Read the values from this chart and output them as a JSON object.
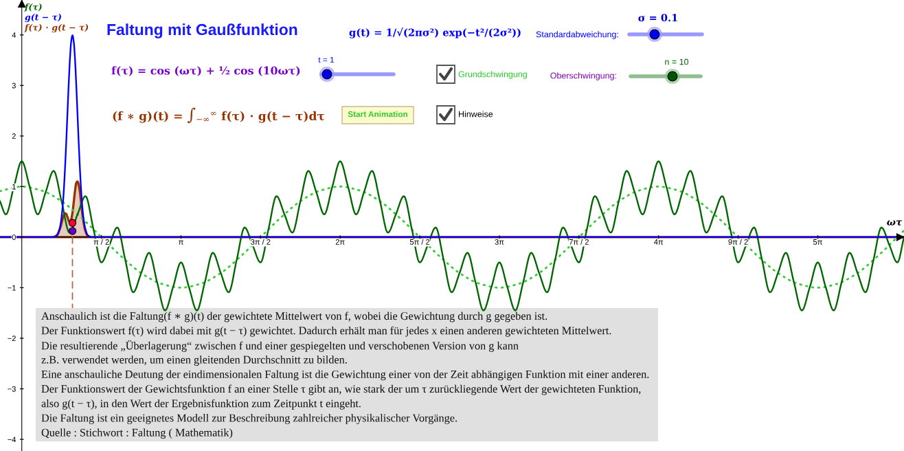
{
  "chart_data": {
    "type": "line",
    "title": "Faltung mit Gaußfunktion",
    "xlabel": "ωτ",
    "xlim": [
      -0.43,
      17.41
    ],
    "ylim": [
      -4.23,
      4.69
    ],
    "xticks": [
      {
        "value": 1.571,
        "label": "π / 2"
      },
      {
        "value": 3.142,
        "label": "π"
      },
      {
        "value": 4.712,
        "label": "3π / 2"
      },
      {
        "value": 6.283,
        "label": "2π"
      },
      {
        "value": 7.854,
        "label": "5π / 2"
      },
      {
        "value": 9.425,
        "label": "3π"
      },
      {
        "value": 10.996,
        "label": "7π / 2"
      },
      {
        "value": 12.566,
        "label": "4π"
      },
      {
        "value": 14.137,
        "label": "9π / 2"
      },
      {
        "value": 15.708,
        "label": "5π"
      }
    ],
    "yticks": [
      {
        "value": -4,
        "label": "−4"
      },
      {
        "value": -3,
        "label": "−3"
      },
      {
        "value": -2,
        "label": "−2"
      },
      {
        "value": -1,
        "label": "−1"
      },
      0,
      1,
      2,
      3,
      4
    ],
    "legend": "top left",
    "series": [
      {
        "name": "f(τ)",
        "color": "#006600",
        "x": [
          -0.43,
          -0.314,
          -0.157,
          0,
          0.157,
          0.314,
          0.471,
          0.628,
          0.785,
          0.942,
          1.1,
          1.257,
          1.414,
          1.571,
          1.728,
          1.885,
          2.042,
          2.199,
          2.356,
          2.513,
          2.67,
          2.827,
          2.985,
          3.142,
          3.299,
          3.456,
          3.613,
          3.77,
          3.927,
          4.084,
          4.241,
          4.398,
          4.555,
          4.712,
          4.869,
          5.027,
          5.184,
          5.341,
          5.498,
          5.655,
          5.812,
          5.969,
          6.126,
          6.283,
          6.44,
          6.597,
          6.754,
          6.912,
          7.069,
          7.226,
          7.383,
          7.54,
          7.697,
          7.854,
          8.011,
          8.168,
          8.325,
          8.482,
          8.639,
          8.796,
          8.954,
          9.111,
          9.268,
          9.425,
          9.582,
          9.739,
          9.896,
          10.053,
          10.21,
          10.367,
          10.524,
          10.681,
          10.838,
          10.996,
          11.153,
          11.31,
          11.467,
          11.624,
          11.781,
          11.938,
          12.095,
          12.252,
          12.409,
          12.566,
          12.723,
          12.881,
          13.038,
          13.195,
          13.352,
          13.509,
          13.666,
          13.823,
          13.98,
          14.137,
          14.294,
          14.451,
          14.608,
          14.765,
          14.923,
          15.08,
          15.237,
          15.394,
          15.551,
          15.708,
          15.865,
          16.022,
          16.179,
          16.336,
          16.493,
          16.65,
          16.808,
          16.965,
          17.122,
          17.279,
          17.41
        ],
        "values": [
          0.71,
          0.45,
          0.99,
          1.5,
          0.99,
          0.45,
          0.89,
          1.31,
          0.71,
          0.09,
          0.45,
          0.81,
          0.16,
          -0.5,
          -0.16,
          0.19,
          -0.45,
          -1.09,
          -0.71,
          -0.31,
          -0.89,
          -1.45,
          -0.99,
          -0.5,
          -0.99,
          -1.45,
          -0.89,
          -0.31,
          -0.71,
          -1.09,
          -0.45,
          0.19,
          -0.16,
          -0.5,
          0.16,
          0.81,
          0.45,
          0.09,
          0.71,
          1.31,
          0.89,
          0.45,
          0.99,
          1.5,
          0.99,
          0.45,
          0.89,
          1.31,
          0.71,
          0.09,
          0.45,
          0.81,
          0.16,
          -0.5,
          -0.16,
          0.19,
          -0.45,
          -1.09,
          -0.71,
          -0.31,
          -0.89,
          -1.45,
          -0.99,
          -0.5,
          -0.99,
          -1.45,
          -0.89,
          -0.31,
          -0.71,
          -1.09,
          -0.45,
          0.19,
          -0.16,
          -0.5,
          0.16,
          0.81,
          0.45,
          0.09,
          0.71,
          1.31,
          0.89,
          0.45,
          0.99,
          1.5,
          0.99,
          0.45,
          0.89,
          1.31,
          0.71,
          0.09,
          0.45,
          0.81,
          0.16,
          -0.5,
          -0.16,
          0.19,
          -0.45,
          -1.09,
          -0.71,
          -0.31,
          -0.89,
          -1.45,
          -0.99,
          -0.5,
          -0.99,
          -1.45,
          -0.89,
          -0.31,
          -0.71,
          -1.09,
          -0.45,
          0.19,
          -0.16,
          -0.5,
          0
        ]
      },
      {
        "name": "g(t − τ)",
        "color": "#0000ff",
        "x": [
          -0.43,
          0.6,
          0.65,
          0.7,
          0.75,
          0.775,
          0.8,
          0.825,
          0.85,
          0.875,
          0.9,
          0.925,
          0.95,
          0.975,
          1.0,
          1.025,
          1.05,
          1.075,
          1.1,
          1.125,
          1.15,
          1.175,
          1.2,
          1.225,
          1.25,
          1.3,
          1.35,
          1.4,
          17.41
        ],
        "values": [
          0,
          0,
          0.01,
          0.04,
          0.18,
          0.32,
          0.54,
          0.86,
          1.3,
          1.83,
          2.42,
          3.01,
          3.52,
          3.87,
          3.99,
          3.87,
          3.52,
          3.01,
          2.42,
          1.83,
          1.3,
          0.86,
          0.54,
          0.32,
          0.18,
          0.04,
          0.01,
          0,
          0
        ]
      },
      {
        "name": "f(τ) ⋅ g(t − τ)",
        "type": "area",
        "color": "#993300",
        "x": [
          -0.43,
          0.6,
          0.65,
          0.7,
          0.75,
          0.775,
          0.8,
          0.825,
          0.85,
          0.875,
          0.9,
          0.925,
          0.95,
          0.975,
          1.0,
          1.025,
          1.05,
          1.075,
          1.1,
          1.125,
          1.15,
          1.175,
          1.2,
          1.225,
          1.25,
          1.3,
          1.35,
          1.4,
          17.41
        ],
        "values": [
          0,
          0,
          0.01,
          0.05,
          0.16,
          0.24,
          0.34,
          0.42,
          0.47,
          0.46,
          0.4,
          0.33,
          0.29,
          0.35,
          0.48,
          0.69,
          0.91,
          1.07,
          1.1,
          1.02,
          0.87,
          0.63,
          0.42,
          0.26,
          0.14,
          0.03,
          0,
          0,
          0
        ]
      },
      {
        "color": "#33cc33",
        "line_style": "dotted",
        "x": [
          -0.43,
          -0.393,
          0,
          0.393,
          0.785,
          1.178,
          1.571,
          1.963,
          2.356,
          2.749,
          3.142,
          3.534,
          3.927,
          4.32,
          4.712,
          5.105,
          5.498,
          5.89,
          6.283,
          6.676,
          7.069,
          7.461,
          7.854,
          8.247,
          8.639,
          9.032,
          9.425,
          9.817,
          10.21,
          10.603,
          10.996,
          11.388,
          11.781,
          12.174,
          12.566,
          12.959,
          13.352,
          13.744,
          14.137,
          14.53,
          14.923,
          15.315,
          15.708,
          16.101,
          16.493,
          16.886,
          17.279,
          17.41
        ],
        "values": [
          0.91,
          0.92,
          1,
          0.92,
          0.71,
          0.38,
          0,
          -0.38,
          -0.71,
          -0.92,
          -1,
          -0.92,
          -0.71,
          -0.38,
          0,
          0.38,
          0.71,
          0.92,
          1,
          0.92,
          0.71,
          0.38,
          0,
          -0.38,
          -0.71,
          -0.92,
          -1,
          -0.92,
          -0.71,
          -0.38,
          0,
          0.38,
          0.71,
          0.92,
          1,
          0.92,
          0.71,
          0.38,
          0,
          -0.38,
          -0.71,
          -0.92,
          -1,
          -0.92,
          -0.71,
          -0.38,
          0,
          0.13
        ]
      },
      {
        "color": "#b5654a",
        "line_style": "dashed",
        "x": [
          1,
          1
        ],
        "values": [
          0,
          -1.39
        ]
      },
      {
        "type": "scatter",
        "color": "#ff0033",
        "marker": "circle",
        "x": [
          1
        ],
        "values": [
          0.28
        ]
      },
      {
        "type": "scatter",
        "color": "#6600cc",
        "marker": "circle",
        "x": [
          1
        ],
        "values": [
          0.12
        ]
      }
    ],
    "annotations": [
      "g(t) = 1/√(2πσ²) exp(−t²/(2σ²))",
      "σ = 0.1",
      "Standardabweichung:",
      "f(τ) = cos (ωτ) + ½ cos (10ωτ)",
      "t = 1",
      "Grundschwingung",
      "Oberschwingung:",
      "n = 10",
      "(f ∗ g)(t) = ∫$_{−∞}$$^{∞}$ f(τ) ⋅ g(t − τ)dτ",
      "Start Animation",
      "Hinweise",
      "Anschaulich ist die Faltung(f ∗ g)(t) der gewichtete Mittelwert von f, wobei die Gewichtung durch g gegeben ist.",
      "Der Funktionswert f(τ) wird dabei mit g(t − τ) gewichtet. Dadurch erhält man für jedes x einen anderen gewichteten Mittelwert.",
      "Die resultierende „Überlagerung“ zwischen f und einer gespiegelten und verschobenen Version von g kann",
      "z.B. verwendet werden, um einen gleitenden Durchschnitt zu bilden.",
      "Eine anschauliche Deutung der eindimensionalen Faltung ist die Gewichtung einer von der Zeit abhängigen Funktion mit einer anderen.",
      "Der Funktionswert der Gewichtsfunktion f an einer Stelle τ gibt an, wie stark der um τ zurückliegende Wert der gewichteten Funktion,",
      "also g(t − τ), in den Wert der Ergebnisfunktion zum Zeitpunkt t eingeht.",
      "Die Faltung ist ein geeignetes Modell zur Beschreibung zahlreicher physikalischer Vorgänge.",
      "Quelle : Stichwort : Faltung ( Mathematik)"
    ]
  }
}
